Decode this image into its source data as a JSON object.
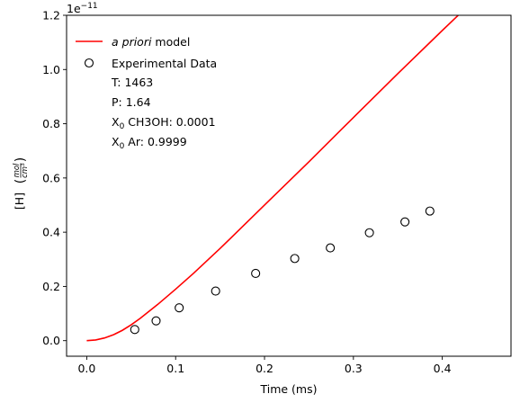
{
  "chart_data": {
    "type": "line",
    "xlabel": "Time (ms)",
    "ylabel": "[H]",
    "ylabel_unit": {
      "num": "mol",
      "den": "cm",
      "den_exp": "3"
    },
    "offset_label": {
      "base": "1e",
      "exp": "−11"
    },
    "y_scale": 1e-11,
    "xlim": [
      -0.0227,
      0.4773
    ],
    "ylim": [
      -0.0574,
      1.2
    ],
    "x_ticks": [
      0.0,
      0.1,
      0.2,
      0.3,
      0.4
    ],
    "x_tick_labels": [
      "0.0",
      "0.1",
      "0.2",
      "0.3",
      "0.4"
    ],
    "y_ticks": [
      0.0,
      0.2,
      0.4,
      0.6,
      0.8,
      1.0,
      1.2
    ],
    "y_tick_labels": [
      "0.0",
      "0.2",
      "0.4",
      "0.6",
      "0.8",
      "1.0",
      "1.2"
    ],
    "grid": false,
    "legend_position": "top-left",
    "series": [
      {
        "name": "a priori model",
        "name_italic": "a priori",
        "name_rest": " model",
        "kind": "line",
        "color": "#ff0000",
        "x": [
          0.0,
          0.01,
          0.02,
          0.03,
          0.04,
          0.05,
          0.06,
          0.08,
          0.1,
          0.12,
          0.15,
          0.2,
          0.25,
          0.3,
          0.35,
          0.4,
          0.455
        ],
        "y": [
          0.0,
          0.0026,
          0.0099,
          0.0217,
          0.038,
          0.0585,
          0.082,
          0.134,
          0.19,
          0.248,
          0.34,
          0.5,
          0.66,
          0.823,
          0.985,
          1.144,
          1.316
        ]
      },
      {
        "name": "Experimental Data",
        "kind": "scatter",
        "color": "#000000",
        "x": [
          0.054,
          0.078,
          0.104,
          0.145,
          0.19,
          0.234,
          0.274,
          0.318,
          0.358,
          0.386
        ],
        "y": [
          0.041,
          0.073,
          0.121,
          0.183,
          0.248,
          0.303,
          0.342,
          0.398,
          0.438,
          0.478
        ]
      }
    ],
    "annotations": [
      {
        "prefix": "T: 1463",
        "sub": "",
        "suffix": ""
      },
      {
        "prefix": "P: 1.64",
        "sub": "",
        "suffix": ""
      },
      {
        "prefix": "X",
        "sub": "0",
        "suffix": " CH3OH: 0.0001"
      },
      {
        "prefix": "X",
        "sub": "0",
        "suffix": " Ar: 0.9999"
      }
    ]
  }
}
